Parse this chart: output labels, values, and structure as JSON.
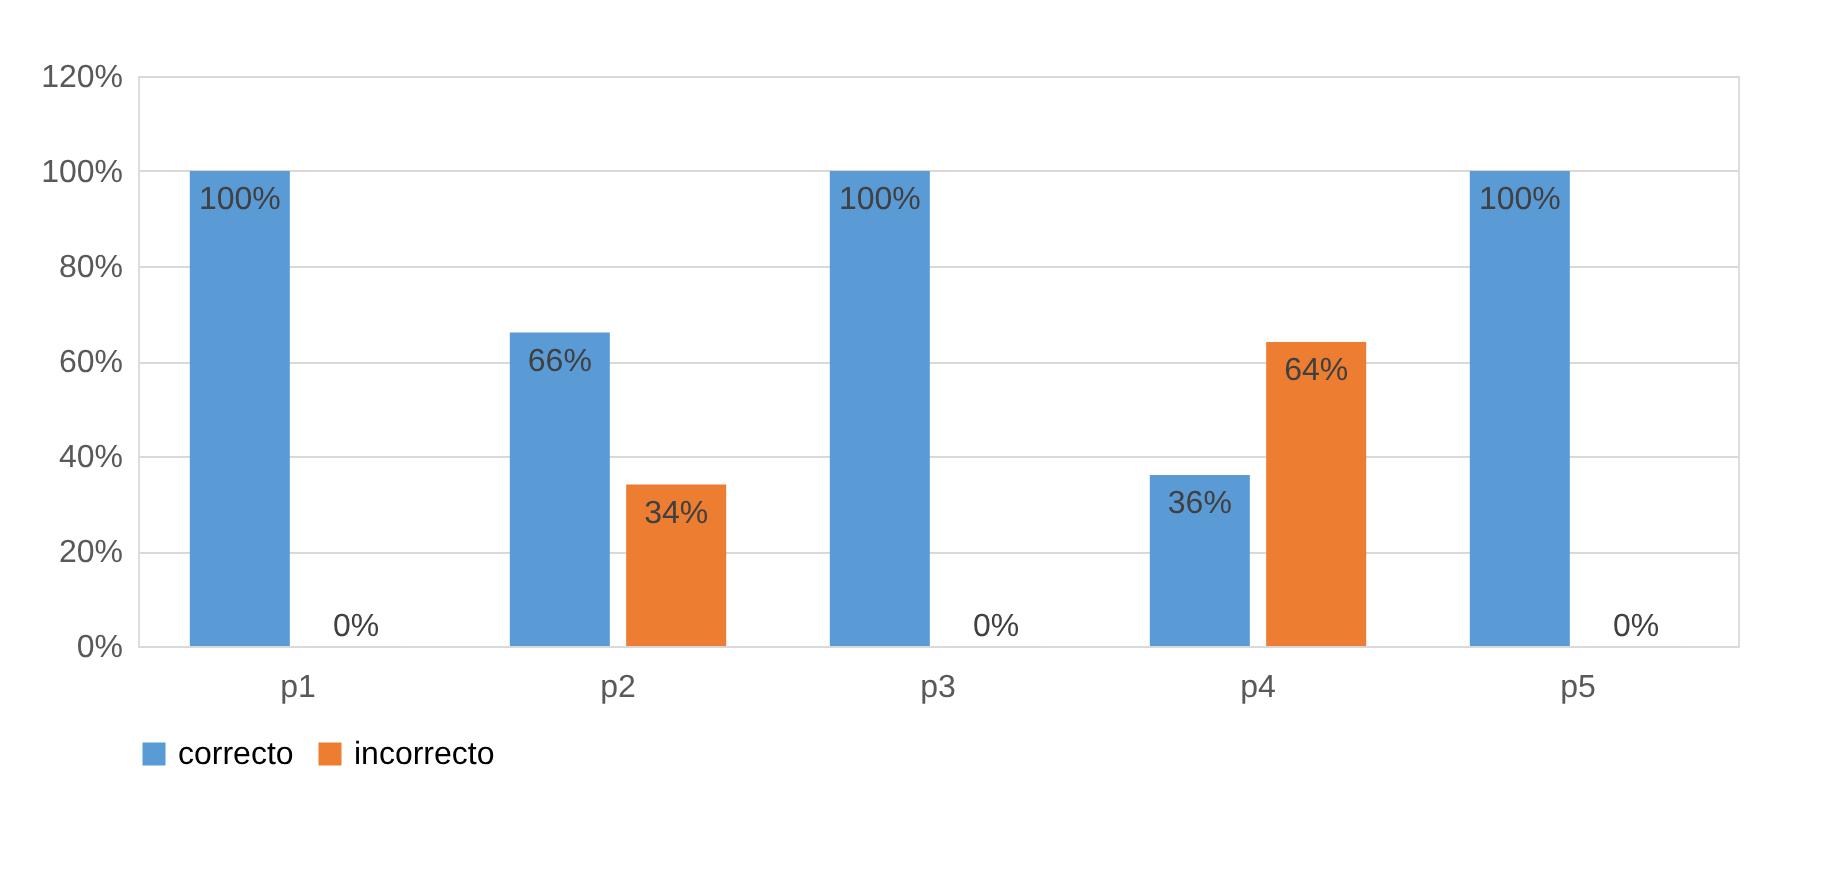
{
  "chart_data": {
    "type": "bar",
    "categories": [
      "p1",
      "p2",
      "p3",
      "p4",
      "p5"
    ],
    "series": [
      {
        "name": "correcto",
        "color": "#5b9bd5",
        "values": [
          100,
          66,
          100,
          36,
          100
        ],
        "value_labels": [
          "100%",
          "66%",
          "100%",
          "36%",
          "100%"
        ]
      },
      {
        "name": "incorrecto",
        "color": "#ed7d31",
        "values": [
          0,
          34,
          0,
          64,
          0
        ],
        "value_labels": [
          "0%",
          "34%",
          "0%",
          "64%",
          "0%"
        ]
      }
    ],
    "ylim": [
      0,
      120
    ],
    "yticks": [
      {
        "value": 0,
        "label": "0%"
      },
      {
        "value": 20,
        "label": "20%"
      },
      {
        "value": 40,
        "label": "40%"
      },
      {
        "value": 60,
        "label": "60%"
      },
      {
        "value": 80,
        "label": "80%"
      },
      {
        "value": 100,
        "label": "100%"
      },
      {
        "value": 120,
        "label": "120%"
      }
    ],
    "grid": "y",
    "legend": "bottom"
  }
}
